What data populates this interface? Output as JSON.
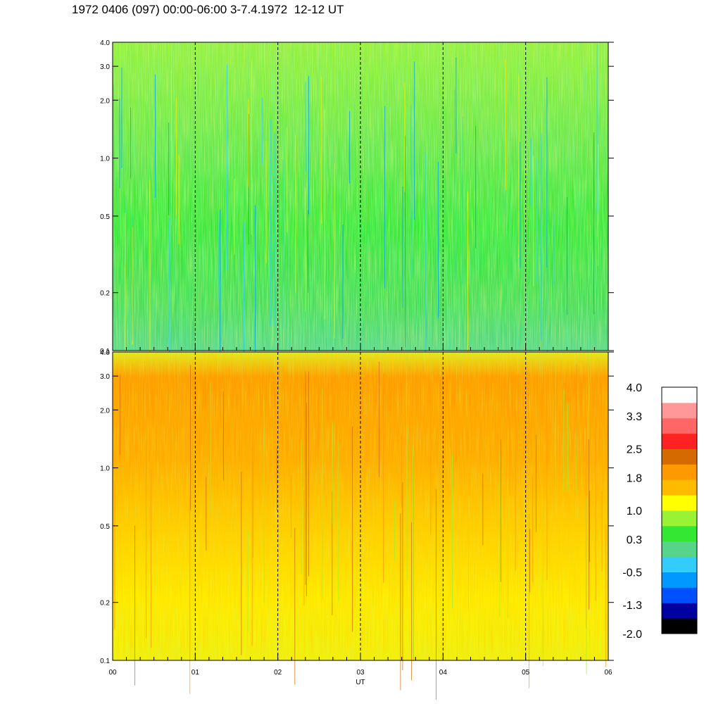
{
  "title": "1972 0406 (097) 00:00-06:00 3-7.4.1972  12-12 UT",
  "chart_data": [
    {
      "type": "heatmap",
      "panel": "top",
      "title": "",
      "y_ticks": [
        "0.1",
        "0.2",
        "0.5",
        "1.0",
        "2.0",
        "3.0",
        "4.0"
      ],
      "y_values": [
        0.1,
        0.2,
        0.5,
        1.0,
        2.0,
        3.0,
        4.0
      ],
      "y_scale": "log",
      "ylim": [
        0.1,
        4.0
      ],
      "dominant_level": 0.3
    },
    {
      "type": "heatmap",
      "panel": "bottom",
      "title": "",
      "y_ticks": [
        "0.1",
        "0.2",
        "0.5",
        "1.0",
        "2.0",
        "3.0",
        "4.0"
      ],
      "y_values": [
        0.1,
        0.2,
        0.5,
        1.0,
        2.0,
        3.0,
        4.0
      ],
      "y_scale": "log",
      "ylim": [
        0.1,
        4.0
      ],
      "dominant_level": 1.5
    }
  ],
  "x_axis": {
    "label": "UT",
    "ticks": [
      "00",
      "01",
      "02",
      "03",
      "04",
      "05",
      "06"
    ],
    "values": [
      0,
      1,
      2,
      3,
      4,
      5,
      6
    ],
    "xlim": [
      0,
      6
    ],
    "dashed_gridlines_at": [
      1,
      2,
      3,
      4,
      5
    ]
  },
  "colorbar": {
    "range": [
      -2.0,
      4.0
    ],
    "labels": [
      "4.0",
      "3.3",
      "2.5",
      "1.8",
      "1.0",
      "0.3",
      "-0.5",
      "-1.3",
      "-2.0"
    ],
    "colors": [
      "#000000",
      "#0000a0",
      "#0050ff",
      "#0099ff",
      "#33ccff",
      "#55d48a",
      "#33e833",
      "#99f233",
      "#ffff00",
      "#ffbb00",
      "#ff9900",
      "#d46a00",
      "#ff2222",
      "#ff6666",
      "#ff9999",
      "#ffffff"
    ]
  }
}
